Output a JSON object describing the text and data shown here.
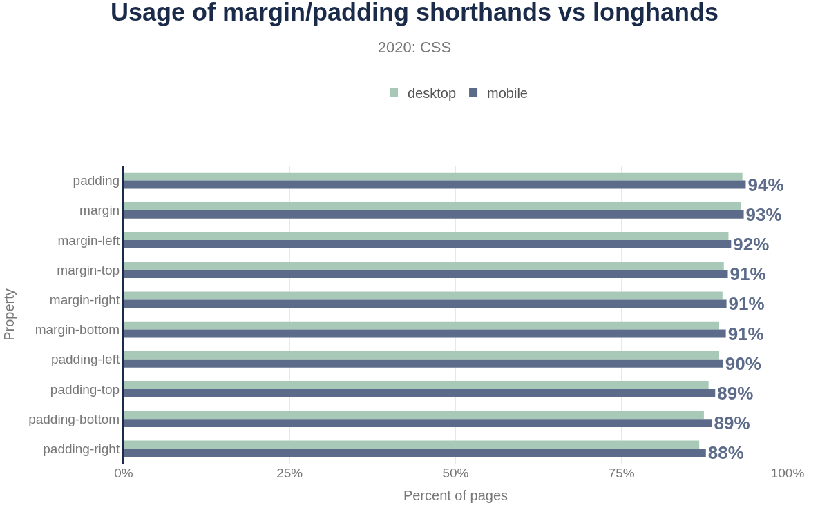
{
  "chart_data": {
    "type": "bar",
    "orientation": "horizontal",
    "title": "Usage of margin/padding shorthands vs longhands",
    "subtitle": "2020: CSS",
    "xlabel": "Percent of pages",
    "ylabel": "Property",
    "categories": [
      "padding",
      "margin",
      "margin-left",
      "margin-top",
      "margin-right",
      "margin-bottom",
      "padding-left",
      "padding-top",
      "padding-bottom",
      "padding-right"
    ],
    "series": [
      {
        "name": "desktop",
        "color": "#a8c9b8",
        "values": [
          93.2,
          93.0,
          91.1,
          90.4,
          90.2,
          89.7,
          89.7,
          88.1,
          87.4,
          86.7
        ]
      },
      {
        "name": "mobile",
        "color": "#5c6b89",
        "values": [
          93.7,
          93.4,
          91.5,
          91.0,
          90.8,
          90.7,
          90.3,
          89.1,
          88.6,
          87.7
        ],
        "value_labels": [
          "94%",
          "93%",
          "92%",
          "91%",
          "91%",
          "91%",
          "90%",
          "89%",
          "89%",
          "88%"
        ]
      }
    ],
    "xlim": [
      0,
      100
    ],
    "xticks": [
      {
        "value": 0,
        "label": "0%"
      },
      {
        "value": 25,
        "label": "25%"
      },
      {
        "value": 50,
        "label": "50%"
      },
      {
        "value": 75,
        "label": "75%"
      },
      {
        "value": 100,
        "label": "100%"
      }
    ],
    "grid": "x",
    "legend": "top"
  }
}
